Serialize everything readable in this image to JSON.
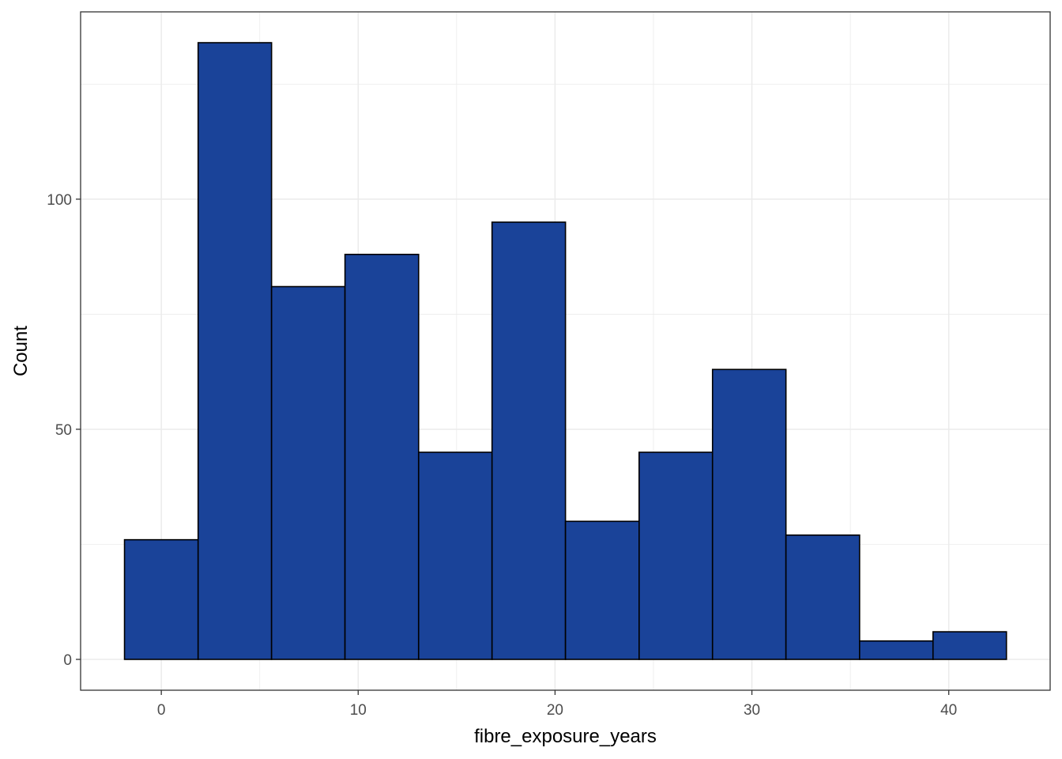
{
  "chart_data": {
    "type": "bar",
    "subtype": "histogram",
    "title": "",
    "xlabel": "fibre_exposure_years",
    "ylabel": "Count",
    "bin_edges": [
      -1.87,
      1.87,
      5.6,
      9.33,
      13.07,
      16.8,
      20.53,
      24.27,
      28.0,
      31.73,
      35.47,
      39.2,
      42.93
    ],
    "values": [
      26,
      134,
      81,
      88,
      45,
      95,
      30,
      45,
      63,
      27,
      4,
      6
    ],
    "xlim": [
      -4.1,
      45.15
    ],
    "ylim": [
      -6.7,
      140.7
    ],
    "x_ticks": [
      0,
      10,
      20,
      30,
      40
    ],
    "x_tick_labels": [
      "0",
      "10",
      "20",
      "30",
      "40"
    ],
    "y_ticks": [
      0,
      50,
      100
    ],
    "y_tick_labels": [
      "0",
      "50",
      "100"
    ],
    "x_minor_ticks": [
      5,
      15,
      25,
      35
    ],
    "y_minor_ticks": [
      25,
      75,
      125
    ],
    "grid": true,
    "legend": "none",
    "colors": {
      "bar_fill": "#1A4399",
      "bar_outline": "#000000",
      "grid": "#EBEBEB",
      "panel_border": "#333333",
      "tick_text": "#4D4D4D",
      "axis_title": "#000000"
    }
  }
}
